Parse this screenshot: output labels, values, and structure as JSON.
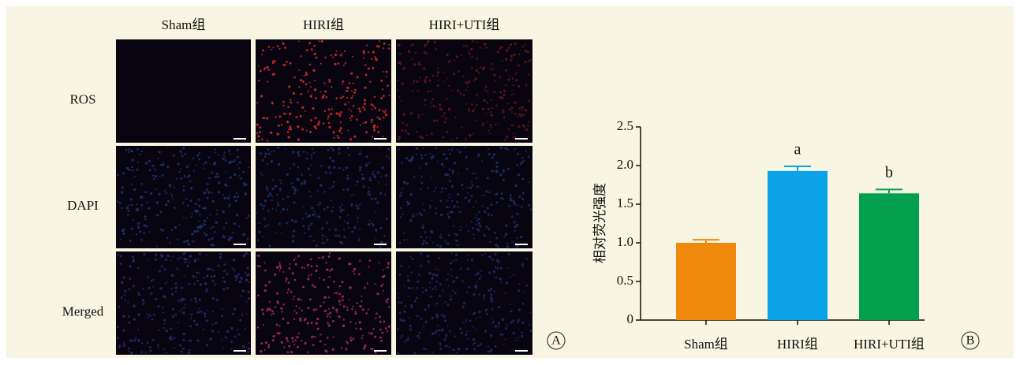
{
  "panel_a": {
    "columns": [
      "Sham组",
      "HIRI组",
      "HIRI+UTI组"
    ],
    "rows": [
      "ROS",
      "DAPI",
      "Merged"
    ],
    "letter": "A"
  },
  "chart_data": {
    "type": "bar",
    "letter": "B",
    "y_label": "相对荧光强度",
    "categories": [
      "Sham组",
      "HIRI组",
      "HIRI+UTI组"
    ],
    "values": [
      1.0,
      1.93,
      1.64
    ],
    "errors": [
      0.04,
      0.06,
      0.05
    ],
    "colors": [
      "#f08a0c",
      "#0aa3e8",
      "#02a04e"
    ],
    "bar_letters": [
      null,
      "a",
      "b"
    ],
    "ylim": [
      0,
      2.5
    ],
    "yticks": [
      0,
      0.5,
      {
        "value": 1,
        "label": "1.0"
      },
      {
        "value": 1.5,
        "label": "1.5"
      },
      {
        "value": 2,
        "label": "2.0"
      },
      2.5
    ]
  }
}
